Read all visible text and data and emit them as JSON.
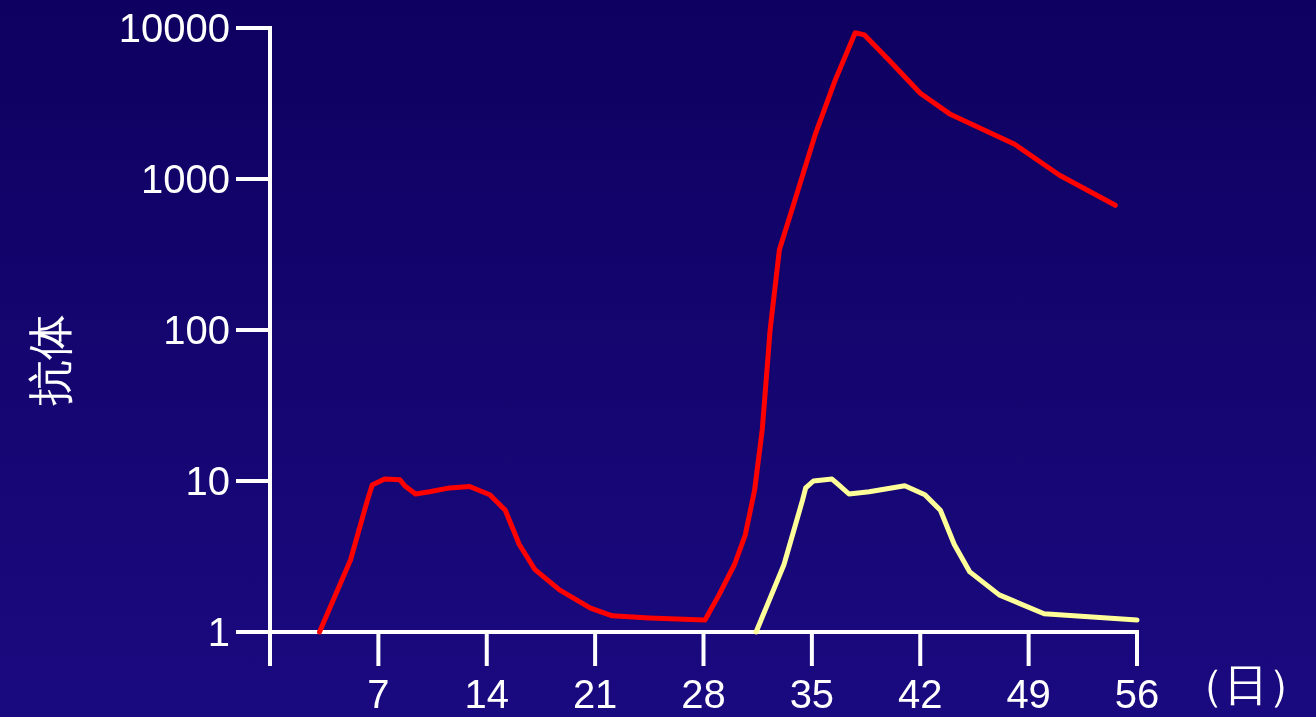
{
  "chart_data": {
    "type": "line",
    "xlabel": "（日）",
    "ylabel": "抗体",
    "log": "y",
    "grid": false,
    "xlim": [
      0,
      56
    ],
    "ylim": [
      1,
      10000
    ],
    "xticks": [
      {
        "value": 0,
        "label": null
      },
      7,
      14,
      21,
      28,
      35,
      42,
      49,
      56
    ],
    "yticks": [
      1,
      10,
      100,
      1000,
      10000
    ],
    "series": [
      {
        "color": "#ff0000",
        "x": [
          3.2,
          5.2,
          6.3,
          6.6,
          7.4,
          8.4,
          8.7,
          9.4,
          10.3,
          11.6,
          12.9,
          14.2,
          15.2,
          16.1,
          17.1,
          18.7,
          20.7,
          22.1,
          24.5,
          28.1,
          29.0,
          30.0,
          30.7,
          31.3,
          31.8,
          32.3,
          32.9,
          33.9,
          35.2,
          36.5,
          37.8,
          38.4,
          40.0,
          42.0,
          43.9,
          48.1,
          51.0,
          54.6
        ],
        "values": [
          1,
          3.0,
          7.5,
          9.4,
          10.3,
          10.2,
          9.3,
          8.2,
          8.5,
          9.0,
          9.2,
          8.1,
          6.4,
          3.8,
          2.6,
          1.9,
          1.44,
          1.28,
          1.24,
          1.2,
          1.76,
          2.8,
          4.4,
          8.7,
          22,
          100,
          340,
          720,
          1950,
          4500,
          9300,
          9000,
          6100,
          3700,
          2700,
          1700,
          1060,
          670
        ]
      },
      {
        "color": "#ffff99",
        "x": [
          31.4,
          33.2,
          34.4,
          34.6,
          35.1,
          36.3,
          36.7,
          37.4,
          38.7,
          41.0,
          42.3,
          43.3,
          44.2,
          45.2,
          47.1,
          50.0,
          56.0
        ],
        "values": [
          1,
          2.8,
          7.5,
          9.0,
          10.0,
          10.3,
          9.5,
          8.2,
          8.5,
          9.3,
          8.1,
          6.4,
          3.8,
          2.5,
          1.76,
          1.32,
          1.2
        ]
      }
    ]
  }
}
